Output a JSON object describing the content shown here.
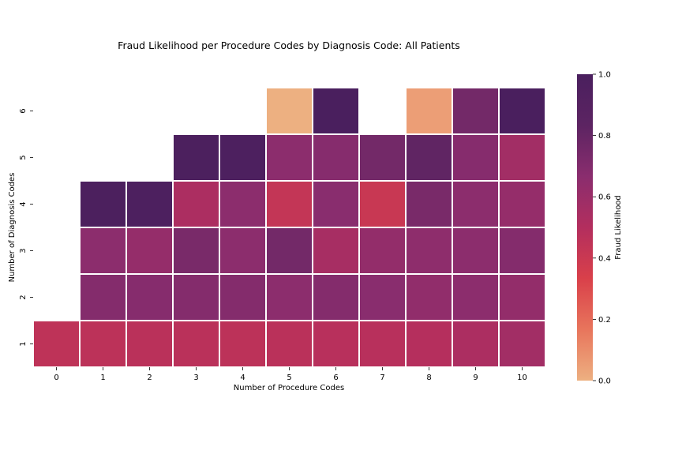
{
  "chart_data": {
    "type": "heatmap",
    "title": "Fraud Likelihood per Procedure Codes by Diagnosis Code: All Patients",
    "xlabel": "Number of Procedure Codes",
    "ylabel": "Number of Diagnosis Codes",
    "x_categories": [
      "0",
      "1",
      "2",
      "3",
      "4",
      "5",
      "6",
      "7",
      "8",
      "9",
      "10"
    ],
    "y_categories": [
      "6",
      "5",
      "4",
      "3",
      "2",
      "1"
    ],
    "values": [
      [
        null,
        null,
        null,
        null,
        null,
        0.0,
        1.0,
        null,
        0.05,
        0.75,
        1.0
      ],
      [
        null,
        null,
        null,
        0.98,
        0.97,
        0.66,
        0.68,
        0.75,
        0.82,
        0.68,
        0.57
      ],
      [
        null,
        0.98,
        0.97,
        0.53,
        0.66,
        0.43,
        0.67,
        0.41,
        0.73,
        0.66,
        0.62
      ],
      [
        null,
        0.66,
        0.62,
        0.73,
        0.66,
        0.75,
        0.55,
        0.63,
        0.65,
        0.66,
        0.69
      ],
      [
        null,
        0.69,
        0.68,
        0.69,
        0.69,
        0.66,
        0.69,
        0.67,
        0.64,
        0.66,
        0.63
      ],
      [
        0.45,
        0.46,
        0.47,
        0.47,
        0.46,
        0.47,
        0.48,
        0.48,
        0.49,
        0.53,
        0.57
      ]
    ],
    "colorbar": {
      "label": "Fraud Likelihood",
      "range": [
        0.0,
        1.0
      ],
      "ticks": [
        "0.0",
        "0.2",
        "0.4",
        "0.6",
        "0.8",
        "1.0"
      ],
      "colormap": [
        "#edb081",
        "#e8755c",
        "#d9404a",
        "#b32e5e",
        "#8a2d6e",
        "#5c2462",
        "#4a1f5e"
      ]
    },
    "grid": false,
    "legend": "right"
  }
}
